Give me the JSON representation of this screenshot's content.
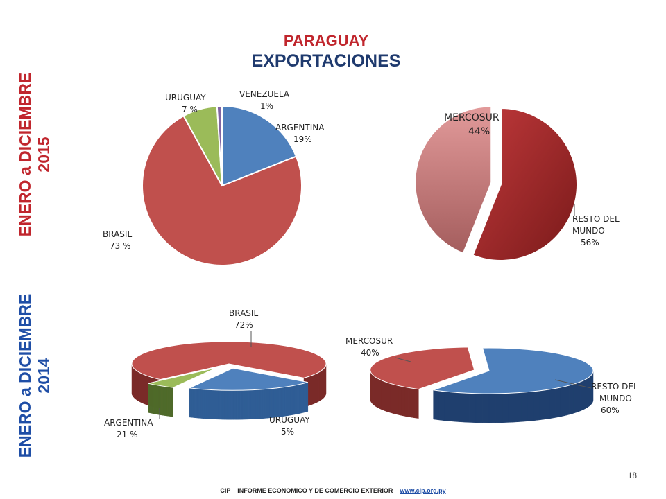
{
  "title": {
    "line1": "PARAGUAY",
    "line2": "EXPORTACIONES"
  },
  "side_labels": {
    "p2015": "ENERO a DICIEMBRE 2015",
    "p2014": "ENERO a DICIEMBRE 2014"
  },
  "colors": {
    "blue": "#4f81bd",
    "red": "#c0504d",
    "green": "#9bbb59",
    "purple": "#8064a2",
    "mercosur_light": "#d98c8c",
    "resto_dark": "#a52a2a"
  },
  "chart_data": [
    {
      "id": "2015-countries",
      "type": "pie",
      "slices": [
        {
          "name": "ARGENTINA",
          "value": 19,
          "label": "19%"
        },
        {
          "name": "BRASIL",
          "value": 73,
          "label": "73 %"
        },
        {
          "name": "URUGUAY",
          "value": 7,
          "label": "7 %"
        },
        {
          "name": "VENEZUELA",
          "value": 1,
          "label": "1%"
        }
      ]
    },
    {
      "id": "2015-blocks",
      "type": "pie",
      "slices": [
        {
          "name": "RESTO DEL MUNDO",
          "value": 56,
          "label": "56%"
        },
        {
          "name": "MERCOSUR",
          "value": 44,
          "label": "44%"
        }
      ]
    },
    {
      "id": "2014-countries",
      "type": "pie",
      "slices": [
        {
          "name": "BRASIL",
          "value": 72,
          "label": "72%"
        },
        {
          "name": "ARGENTINA",
          "value": 21,
          "label": "21 %"
        },
        {
          "name": "URUGUAY",
          "value": 5,
          "label": "5%"
        }
      ]
    },
    {
      "id": "2014-blocks",
      "type": "pie",
      "slices": [
        {
          "name": "MERCOSUR",
          "value": 40,
          "label": "40%"
        },
        {
          "name": "RESTO DEL MUNDO",
          "value": 60,
          "label": "60%"
        }
      ]
    }
  ],
  "labels": {
    "c2015": {
      "uruguay": "URUGUAY",
      "uruguay_pct": "7 %",
      "venezuela": "VENEZUELA",
      "venezuela_pct": "1%",
      "argentina": "ARGENTINA",
      "argentina_pct": "19%",
      "brasil": "BRASIL",
      "brasil_pct": "73 %"
    },
    "b2015": {
      "mercosur": "MERCOSUR",
      "mercosur_pct": "44%",
      "resto1": "RESTO DEL",
      "resto2": "MUNDO",
      "resto_pct": "56%"
    },
    "c2014": {
      "brasil": "BRASIL",
      "brasil_pct": "72%",
      "argentina": "ARGENTINA",
      "argentina_pct": "21 %",
      "uruguay": "URUGUAY",
      "uruguay_pct": "5%"
    },
    "b2014": {
      "mercosur": "MERCOSUR",
      "mercosur_pct": "40%",
      "resto1": "RESTO DEL",
      "resto2": "MUNDO",
      "resto_pct": "60%"
    }
  },
  "page_number": "18",
  "footer": {
    "text": "CIP – INFORME ECONOMICO Y DE COMERCIO EXTERIOR – ",
    "link": "www.cip.org.py"
  }
}
